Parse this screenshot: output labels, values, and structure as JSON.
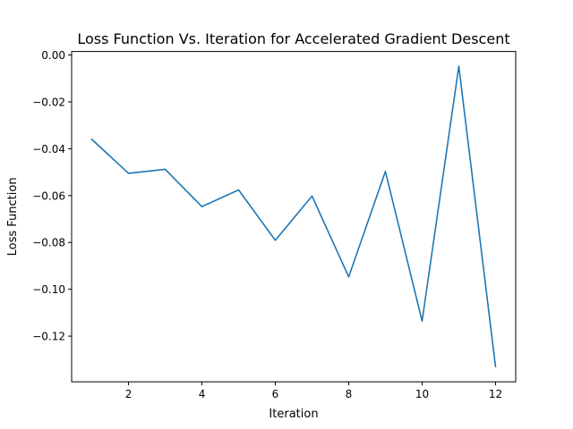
{
  "chart_data": {
    "type": "line",
    "title": "Loss Function Vs. Iteration for Accelerated Gradient Descent",
    "xlabel": "Iteration",
    "ylabel": "Loss Function",
    "xlim": [
      0.45,
      12.55
    ],
    "ylim": [
      -0.1395,
      0.0015
    ],
    "xticks": [
      2,
      4,
      6,
      8,
      10,
      12
    ],
    "yticks": [
      0.0,
      -0.02,
      -0.04,
      -0.06,
      -0.08,
      -0.1,
      -0.12
    ],
    "ytick_labels": [
      "0.00",
      "−0.02",
      "−0.04",
      "−0.06",
      "−0.08",
      "−0.10",
      "−0.12"
    ],
    "grid": false,
    "series": [
      {
        "color": "#1f77b4",
        "x": [
          1,
          2,
          3,
          4,
          5,
          6,
          7,
          8,
          9,
          10,
          11,
          12
        ],
        "y": [
          -0.036,
          -0.0505,
          -0.0488,
          -0.0647,
          -0.0576,
          -0.0791,
          -0.0602,
          -0.0947,
          -0.0497,
          -0.1136,
          -0.0048,
          -0.133
        ]
      }
    ]
  }
}
